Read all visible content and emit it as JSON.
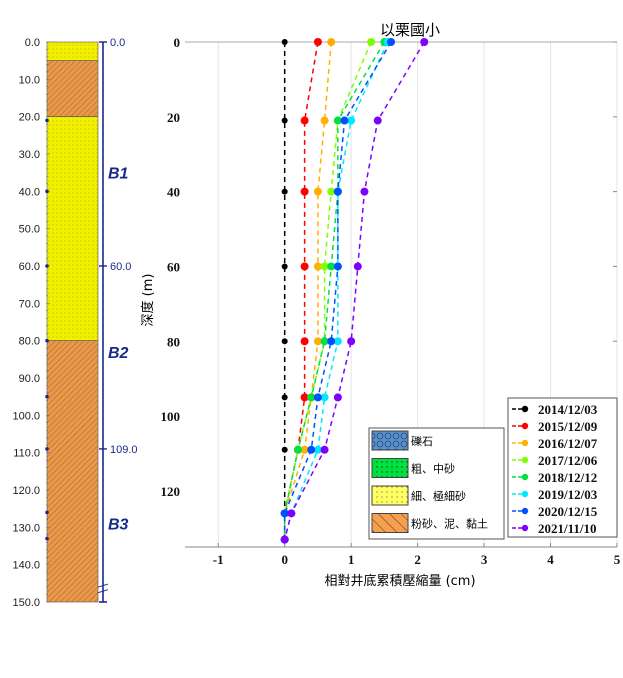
{
  "chart_data": {
    "type": "line",
    "title": "以栗國小",
    "xlabel": "相對井底累積壓縮量 (cm)",
    "ylabel": "深度 (m)",
    "xlim": [
      -1.5,
      5
    ],
    "ylim": [
      0,
      135
    ],
    "y_inverted": true,
    "grid": "vertical",
    "xticks": [
      "-1",
      "0",
      "1",
      "2",
      "3",
      "4",
      "5"
    ],
    "yticks": [
      "0",
      "20",
      "40",
      "60",
      "80",
      "100",
      "120"
    ],
    "depths": [
      0,
      21,
      40,
      60,
      80,
      95,
      109,
      126,
      133
    ],
    "legend_placement": "bottom-right",
    "series": [
      {
        "name": "2014/12/03",
        "color": "#000000",
        "values": [
          0,
          0,
          0,
          0,
          0,
          0,
          0,
          0,
          0
        ]
      },
      {
        "name": "2015/12/09",
        "color": "#ff0000",
        "values": [
          0.5,
          0.3,
          0.3,
          0.3,
          0.3,
          0.3,
          0.2,
          0,
          0
        ]
      },
      {
        "name": "2016/12/07",
        "color": "#ffb000",
        "values": [
          0.7,
          0.6,
          0.5,
          0.5,
          0.5,
          0.4,
          0.3,
          0,
          0
        ]
      },
      {
        "name": "2017/12/06",
        "color": "#80ff00",
        "values": [
          1.3,
          0.8,
          0.7,
          0.6,
          0.6,
          0.4,
          0.2,
          0,
          0
        ]
      },
      {
        "name": "2018/12/12",
        "color": "#00e040",
        "values": [
          1.5,
          0.8,
          0.8,
          0.7,
          0.6,
          0.4,
          0.2,
          0,
          0
        ]
      },
      {
        "name": "2019/12/03",
        "color": "#00e8ff",
        "values": [
          1.55,
          1.0,
          0.8,
          0.8,
          0.8,
          0.6,
          0.5,
          0.1,
          0
        ]
      },
      {
        "name": "2020/12/15",
        "color": "#0050ff",
        "values": [
          1.6,
          0.9,
          0.8,
          0.8,
          0.7,
          0.5,
          0.4,
          0,
          0
        ]
      },
      {
        "name": "2021/11/10",
        "color": "#8000ff",
        "values": [
          2.1,
          1.4,
          1.2,
          1.1,
          1.0,
          0.8,
          0.6,
          0.1,
          0
        ]
      }
    ]
  },
  "borehole": {
    "depth_ticks": [
      "0.0",
      "10.0",
      "20.0",
      "30.0",
      "40.0",
      "50.0",
      "60.0",
      "70.0",
      "80.0",
      "90.0",
      "100.0",
      "110.0",
      "120.0",
      "130.0",
      "140.0",
      "150.0"
    ],
    "layers": [
      {
        "top": 0,
        "bottom": 5,
        "type": "fine"
      },
      {
        "top": 5,
        "bottom": 20,
        "type": "silt"
      },
      {
        "top": 20,
        "bottom": 80,
        "type": "fine"
      },
      {
        "top": 80,
        "bottom": 150,
        "type": "silt"
      }
    ],
    "sensor_depths": [
      21,
      40,
      60,
      80,
      95,
      109,
      126,
      133
    ],
    "zone_marks": [
      {
        "depth": 0,
        "label": "0.0"
      },
      {
        "depth": 60,
        "label": "60.0"
      },
      {
        "depth": 109,
        "label": "109.0"
      }
    ],
    "zones": [
      {
        "label": "B1",
        "depth": 35
      },
      {
        "label": "B2",
        "depth": 83
      },
      {
        "label": "B3",
        "depth": 129
      }
    ]
  },
  "soil_legend": [
    {
      "label": "礫石",
      "color": "#5a8fc8",
      "type": "gravel"
    },
    {
      "label": "粗、中砂",
      "color": "#00e040",
      "type": "coarse"
    },
    {
      "label": "細、極細砂",
      "color": "#ffff66",
      "type": "fine"
    },
    {
      "label": "粉砂、泥、黏土",
      "color": "#f4a050",
      "type": "silt"
    }
  ]
}
